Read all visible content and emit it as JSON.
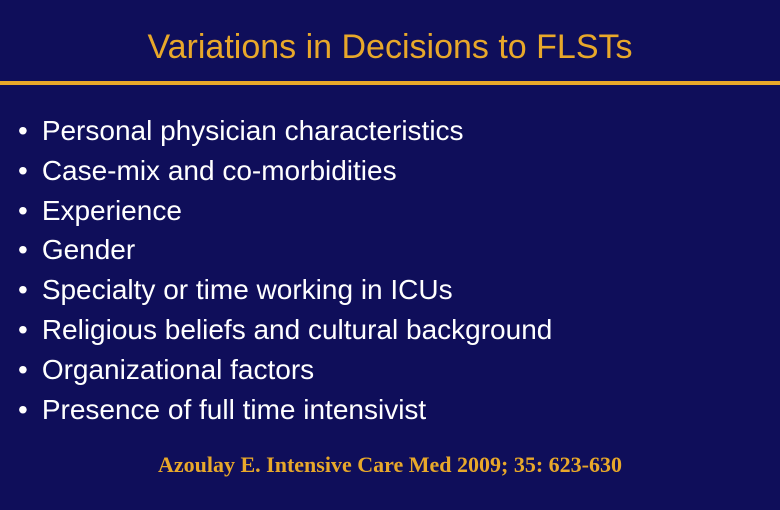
{
  "colors": {
    "background": "#0f0e5a",
    "title": "#e8a82a",
    "body_text": "#ffffff",
    "divider": "#e8a82a",
    "citation": "#e8a82a"
  },
  "typography": {
    "title_fontsize": 34,
    "body_fontsize": 28,
    "citation_fontsize": 22
  },
  "layout": {
    "divider_height": 4
  },
  "title": "Variations in Decisions to FLSTs",
  "bullets": [
    "Personal physician characteristics",
    "Case-mix and co-morbidities",
    "Experience",
    "Gender",
    "Specialty or time working in ICUs",
    "Religious beliefs and cultural background",
    "Organizational factors",
    "Presence of full time intensivist"
  ],
  "bullet_char": "•",
  "citation": "Azoulay E. Intensive Care Med 2009; 35: 623-630"
}
